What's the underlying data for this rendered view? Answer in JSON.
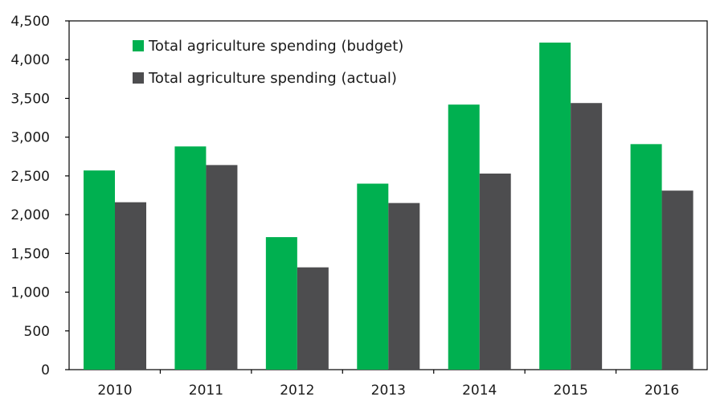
{
  "chart_data": {
    "type": "bar",
    "title": "",
    "xlabel": "",
    "ylabel": "",
    "categories": [
      "2010",
      "2011",
      "2012",
      "2013",
      "2014",
      "2015",
      "2016"
    ],
    "series": [
      {
        "name": "Total agriculture spending (budget)",
        "color": "#00b050",
        "values": [
          2570,
          2880,
          1710,
          2400,
          3420,
          4220,
          2910
        ]
      },
      {
        "name": "Total agriculture spending (actual)",
        "color": "#4d4d4f",
        "values": [
          2160,
          2640,
          1320,
          2150,
          2530,
          3440,
          2310
        ]
      }
    ],
    "ylim": [
      0,
      4500
    ],
    "yticks": [
      0,
      500,
      1000,
      1500,
      2000,
      2500,
      3000,
      3500,
      4000,
      4500
    ],
    "ytick_labels": [
      "0",
      "500",
      "1,000",
      "1,500",
      "2,000",
      "2,500",
      "3,000",
      "3,500",
      "4,000",
      "4,500"
    ],
    "grid": false,
    "legend_position": "top-left"
  }
}
